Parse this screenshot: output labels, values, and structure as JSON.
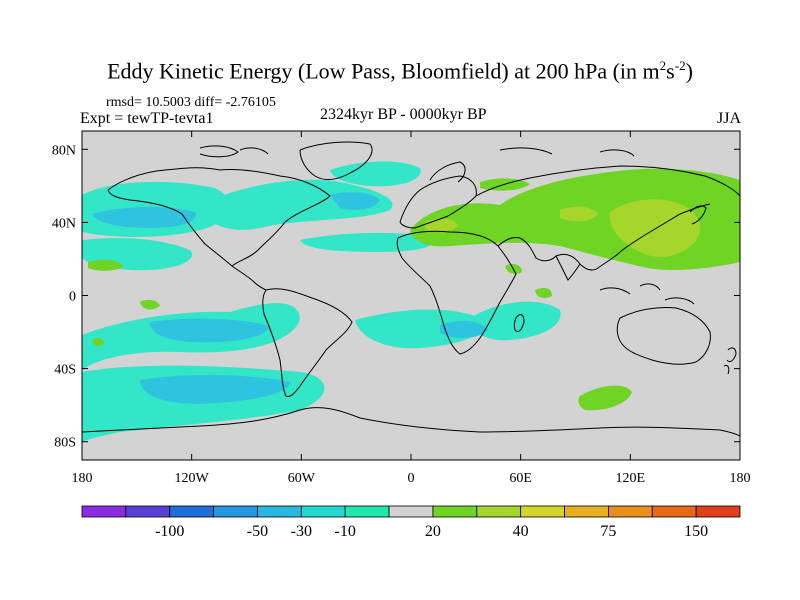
{
  "title": {
    "main": "Eddy Kinetic Energy (Low Pass, Bloomfield) at 200 hPa (in m",
    "sup1": "2",
    "mid": "s",
    "sup2": "-2",
    "end": ")"
  },
  "stats": "rmsd= 10.5003 diff= -2.76105",
  "experiment": "Expt = tewTP-tevta1",
  "period": "2324kyr BP - 0000kyr BP",
  "season": "JJA",
  "lat_ticks": [
    "80N",
    "40N",
    "0",
    "40S",
    "80S"
  ],
  "lon_ticks": [
    "180",
    "120W",
    "60W",
    "0",
    "60E",
    "120E",
    "180"
  ],
  "colorbar": {
    "labels": [
      "-100",
      "-50",
      "-30",
      "-10",
      "20",
      "40",
      "75",
      "150"
    ],
    "colors": [
      "#8a2be2",
      "#5a3fd6",
      "#1f6fd9",
      "#2596e0",
      "#29b8e0",
      "#22d8d0",
      "#20e8b0",
      "#d3d3d3",
      "#6fd424",
      "#a6d62c",
      "#d4d42a",
      "#e6b020",
      "#e8901c",
      "#e86a18",
      "#e0401a"
    ]
  },
  "palette": {
    "neutral": "#d3d3d3",
    "cyan_light": "#34e6c8",
    "cyan_mid": "#2ec4e0",
    "green": "#6fd424",
    "yellow_green": "#a6d62c"
  }
}
